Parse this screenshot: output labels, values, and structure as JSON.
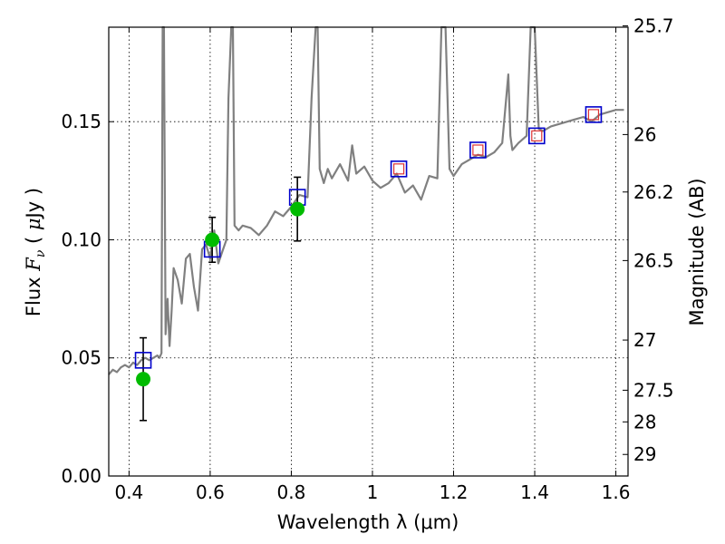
{
  "chart_data": {
    "type": "line",
    "xlabel": "Wavelength  λ (μm)",
    "ylabel": "Flux  F_ν  ( μJy )",
    "ylabel_parts": [
      "Flux  ",
      "F",
      "ν",
      "  ( ",
      "μ",
      "Jy )"
    ],
    "y2label": "Magnitude (AB)",
    "xlim": [
      0.35,
      1.63
    ],
    "ylim": [
      0.0,
      0.19
    ],
    "grid": true,
    "xticks": [
      0.4,
      0.6,
      0.8,
      1.0,
      1.2,
      1.4,
      1.6
    ],
    "xtick_labels": [
      "0.4",
      "0.6",
      "0.8",
      "1",
      "1.2",
      "1.4",
      "1.6"
    ],
    "yticks": [
      0.0,
      0.05,
      0.1,
      0.15
    ],
    "ytick_labels": [
      "0.00",
      "0.05",
      "0.10",
      "0.15"
    ],
    "y2ticks": [
      {
        "mag": 25.7,
        "label": "25.7"
      },
      {
        "mag": 26.0,
        "label": "26"
      },
      {
        "mag": 26.2,
        "label": "26.2"
      },
      {
        "mag": 26.5,
        "label": "26.5"
      },
      {
        "mag": 27.0,
        "label": "27"
      },
      {
        "mag": 27.5,
        "label": "27.5"
      },
      {
        "mag": 28.0,
        "label": "28"
      },
      {
        "mag": 29.0,
        "label": "29"
      }
    ],
    "model_spectrum": {
      "color": "#808080",
      "x": [
        0.35,
        0.36,
        0.37,
        0.38,
        0.39,
        0.4,
        0.41,
        0.42,
        0.43,
        0.44,
        0.45,
        0.46,
        0.47,
        0.475,
        0.48,
        0.483,
        0.486,
        0.49,
        0.495,
        0.5,
        0.505,
        0.51,
        0.52,
        0.53,
        0.54,
        0.55,
        0.56,
        0.57,
        0.58,
        0.59,
        0.6,
        0.61,
        0.62,
        0.63,
        0.64,
        0.645,
        0.652,
        0.656,
        0.66,
        0.67,
        0.68,
        0.7,
        0.72,
        0.74,
        0.76,
        0.78,
        0.8,
        0.82,
        0.84,
        0.85,
        0.86,
        0.865,
        0.87,
        0.88,
        0.89,
        0.9,
        0.92,
        0.94,
        0.95,
        0.96,
        0.98,
        1.0,
        1.02,
        1.04,
        1.06,
        1.08,
        1.1,
        1.12,
        1.14,
        1.16,
        1.17,
        1.18,
        1.19,
        1.2,
        1.22,
        1.24,
        1.26,
        1.28,
        1.3,
        1.32,
        1.335,
        1.34,
        1.345,
        1.36,
        1.38,
        1.39,
        1.4,
        1.41,
        1.42,
        1.44,
        1.46,
        1.48,
        1.5,
        1.52,
        1.54,
        1.56,
        1.58,
        1.6,
        1.62
      ],
      "y": [
        0.043,
        0.045,
        0.044,
        0.046,
        0.047,
        0.046,
        0.048,
        0.047,
        0.049,
        0.05,
        0.049,
        0.05,
        0.051,
        0.05,
        0.052,
        0.19,
        0.19,
        0.06,
        0.075,
        0.055,
        0.07,
        0.088,
        0.083,
        0.073,
        0.092,
        0.094,
        0.08,
        0.07,
        0.096,
        0.098,
        0.092,
        0.104,
        0.09,
        0.095,
        0.1,
        0.16,
        0.19,
        0.19,
        0.106,
        0.104,
        0.106,
        0.105,
        0.102,
        0.106,
        0.112,
        0.11,
        0.114,
        0.119,
        0.118,
        0.16,
        0.19,
        0.19,
        0.13,
        0.124,
        0.13,
        0.126,
        0.132,
        0.125,
        0.14,
        0.128,
        0.131,
        0.125,
        0.122,
        0.124,
        0.128,
        0.12,
        0.123,
        0.117,
        0.127,
        0.126,
        0.19,
        0.19,
        0.13,
        0.127,
        0.132,
        0.134,
        0.136,
        0.135,
        0.137,
        0.141,
        0.17,
        0.144,
        0.138,
        0.141,
        0.144,
        0.19,
        0.19,
        0.147,
        0.146,
        0.148,
        0.149,
        0.15,
        0.151,
        0.152,
        0.15,
        0.153,
        0.154,
        0.155,
        0.155
      ]
    },
    "observed": {
      "color": "#00bb00",
      "x": [
        0.435,
        0.605,
        0.815
      ],
      "y": [
        0.041,
        0.1,
        0.113
      ],
      "yerr": [
        0.0175,
        0.0095,
        0.0135
      ]
    },
    "model_photometry": {
      "color": "#0000cc",
      "x": [
        0.435,
        0.605,
        0.815,
        1.065,
        1.26,
        1.405,
        1.545
      ],
      "y": [
        0.049,
        0.096,
        0.118,
        0.13,
        0.138,
        0.144,
        0.153
      ]
    },
    "model_photometry_inner": {
      "color": "#dd3333",
      "x": [
        1.065,
        1.26,
        1.405,
        1.545
      ],
      "y": [
        0.13,
        0.138,
        0.144,
        0.153
      ]
    }
  }
}
